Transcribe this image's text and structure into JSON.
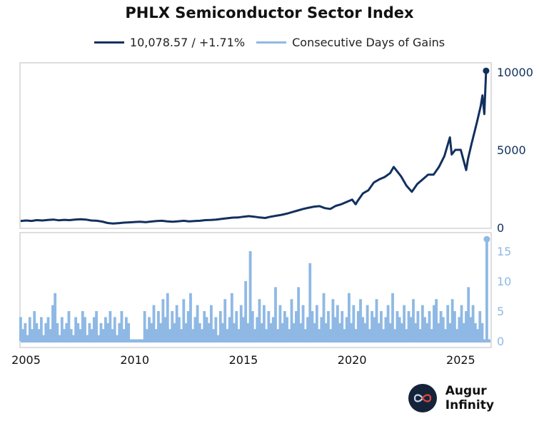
{
  "brand": {
    "name": "Augur Infinity"
  },
  "chart_data": [
    {
      "type": "line",
      "title": "PHLX Semiconductor Sector Index",
      "series": [
        {
          "name": "10,078.57 / +1.71%",
          "color": "#12305e"
        }
      ],
      "ylim": [
        0,
        10500
      ],
      "yticks": [
        "0",
        "5000",
        "10000"
      ],
      "ytick_values": [
        0,
        5000,
        10000
      ],
      "x": [
        "2004-10",
        "2005-01",
        "2005-04",
        "2005-07",
        "2005-10",
        "2006-01",
        "2006-04",
        "2006-07",
        "2006-10",
        "2007-01",
        "2007-04",
        "2007-07",
        "2007-10",
        "2008-01",
        "2008-04",
        "2008-07",
        "2008-10",
        "2009-01",
        "2009-04",
        "2009-07",
        "2009-10",
        "2010-01",
        "2010-04",
        "2010-07",
        "2010-10",
        "2011-01",
        "2011-04",
        "2011-07",
        "2011-10",
        "2012-01",
        "2012-04",
        "2012-07",
        "2012-10",
        "2013-01",
        "2013-04",
        "2013-07",
        "2013-10",
        "2014-01",
        "2014-04",
        "2014-07",
        "2014-10",
        "2015-01",
        "2015-04",
        "2015-07",
        "2015-10",
        "2016-01",
        "2016-04",
        "2016-07",
        "2016-10",
        "2017-01",
        "2017-04",
        "2017-07",
        "2017-10",
        "2018-01",
        "2018-04",
        "2018-07",
        "2018-10",
        "2019-01",
        "2019-04",
        "2019-07",
        "2019-10",
        "2020-01",
        "2020-03",
        "2020-04",
        "2020-07",
        "2020-10",
        "2021-01",
        "2021-04",
        "2021-07",
        "2021-10",
        "2021-12",
        "2022-04",
        "2022-07",
        "2022-10",
        "2023-01",
        "2023-04",
        "2023-07",
        "2023-10",
        "2024-01",
        "2024-04",
        "2024-07",
        "2024-08",
        "2024-10",
        "2025-01",
        "2025-04",
        "2025-05",
        "2025-07",
        "2025-10",
        "2025-12",
        "2026-01",
        "2026-02",
        "2026-03"
      ],
      "values": [
        420,
        460,
        430,
        480,
        460,
        490,
        520,
        470,
        500,
        480,
        520,
        540,
        520,
        460,
        440,
        390,
        300,
        260,
        290,
        320,
        340,
        360,
        380,
        350,
        390,
        420,
        440,
        400,
        380,
        410,
        440,
        400,
        420,
        440,
        480,
        490,
        520,
        560,
        600,
        640,
        650,
        700,
        740,
        700,
        650,
        620,
        700,
        760,
        820,
        900,
        1000,
        1100,
        1200,
        1280,
        1350,
        1380,
        1250,
        1200,
        1400,
        1500,
        1650,
        1800,
        1500,
        1700,
        2200,
        2400,
        2900,
        3100,
        3250,
        3500,
        3900,
        3300,
        2700,
        2300,
        2800,
        3100,
        3400,
        3400,
        3900,
        4600,
        5800,
        4700,
        5000,
        5000,
        3700,
        4400,
        5400,
        6800,
        7800,
        8500,
        7300,
        10078.57
      ]
    },
    {
      "type": "bar",
      "series": [
        {
          "name": "Consecutive Days of Gains",
          "color": "#8fb9e4"
        }
      ],
      "ylim": [
        0,
        18
      ],
      "yticks": [
        "0",
        "5",
        "10",
        "15"
      ],
      "ytick_values": [
        0,
        5,
        10,
        15
      ],
      "xlim": [
        2004.72,
        2026.4
      ],
      "xticks": [
        "2005",
        "2010",
        "2015",
        "2020",
        "2025"
      ],
      "xtick_values": [
        2005,
        2010,
        2015,
        2020,
        2025
      ],
      "x_start": 2004.75,
      "x_end": 2026.2,
      "values": [
        4,
        2,
        3,
        1,
        4,
        2,
        5,
        3,
        2,
        4,
        1,
        3,
        4,
        2,
        6,
        8,
        3,
        1,
        4,
        2,
        3,
        5,
        2,
        1,
        4,
        3,
        2,
        5,
        4,
        1,
        3,
        2,
        4,
        5,
        1,
        3,
        2,
        4,
        3,
        5,
        2,
        4,
        1,
        3,
        5,
        2,
        4,
        3,
        0,
        0,
        0,
        0,
        0,
        0,
        5,
        2,
        4,
        3,
        6,
        2,
        5,
        3,
        7,
        4,
        8,
        2,
        5,
        3,
        6,
        4,
        2,
        7,
        3,
        5,
        8,
        2,
        4,
        6,
        3,
        2,
        5,
        4,
        3,
        6,
        2,
        4,
        1,
        5,
        3,
        7,
        2,
        4,
        8,
        3,
        5,
        2,
        6,
        4,
        10,
        3,
        15,
        5,
        2,
        4,
        7,
        3,
        6,
        2,
        5,
        3,
        4,
        9,
        2,
        6,
        3,
        5,
        4,
        2,
        7,
        3,
        5,
        9,
        3,
        6,
        2,
        4,
        13,
        5,
        3,
        6,
        2,
        4,
        8,
        3,
        5,
        2,
        7,
        4,
        6,
        3,
        5,
        2,
        4,
        8,
        3,
        6,
        2,
        5,
        7,
        4,
        3,
        6,
        2,
        5,
        4,
        7,
        3,
        5,
        2,
        4,
        6,
        3,
        8,
        2,
        5,
        4,
        3,
        6,
        2,
        5,
        4,
        7,
        3,
        5,
        2,
        6,
        4,
        3,
        5,
        2,
        6,
        7,
        3,
        5,
        4,
        2,
        6,
        3,
        7,
        5,
        2,
        4,
        6,
        3,
        5,
        9,
        4,
        6,
        3,
        2,
        5,
        3,
        0,
        17
      ]
    }
  ]
}
